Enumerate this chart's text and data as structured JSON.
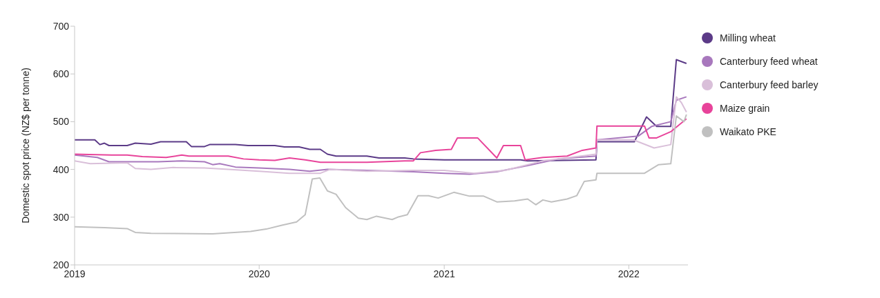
{
  "chart_data": {
    "type": "line",
    "ylabel": "Domestic spot price (NZ$ per tonne)",
    "xlim": [
      "2019-01-01",
      "2022-04-28"
    ],
    "xticks": [
      "2019",
      "2020",
      "2021",
      "2022"
    ],
    "ylim": [
      200,
      700
    ],
    "yticks": [
      200,
      300,
      400,
      500,
      600,
      700
    ],
    "grid": false,
    "legend": "right",
    "marker": "none",
    "line_style": "solid",
    "series": [
      {
        "name": "Milling wheat",
        "color": "#5b3a87",
        "x": [
          "2019-01-01",
          "2019-02-10",
          "2019-02-20",
          "2019-03-01",
          "2019-03-10",
          "2019-04-15",
          "2019-05-01",
          "2019-06-01",
          "2019-06-20",
          "2019-08-10",
          "2019-08-20",
          "2019-09-15",
          "2019-09-25",
          "2019-11-15",
          "2019-12-10",
          "2020-02-01",
          "2020-02-20",
          "2020-03-20",
          "2020-04-10",
          "2020-05-01",
          "2020-05-15",
          "2020-06-01",
          "2020-08-01",
          "2020-08-25",
          "2020-10-15",
          "2020-11-01",
          "2021-01-01",
          "2021-06-01",
          "2021-06-15",
          "2021-10-28",
          "2021-10-30",
          "2022-01-12",
          "2022-02-05",
          "2022-02-25",
          "2022-03-25",
          "2022-04-05",
          "2022-04-25"
        ],
        "values": [
          462,
          462,
          452,
          455,
          450,
          450,
          455,
          453,
          458,
          458,
          448,
          448,
          452,
          452,
          450,
          450,
          447,
          447,
          442,
          442,
          432,
          428,
          428,
          424,
          424,
          422,
          420,
          420,
          418,
          420,
          458,
          458,
          510,
          490,
          490,
          630,
          622
        ]
      },
      {
        "name": "Canterbury feed wheat",
        "color": "#a878bd",
        "x": [
          "2019-01-01",
          "2019-02-15",
          "2019-03-10",
          "2019-05-01",
          "2019-06-15",
          "2019-08-01",
          "2019-09-15",
          "2019-10-01",
          "2019-10-15",
          "2019-11-15",
          "2020-01-01",
          "2020-03-01",
          "2020-04-10",
          "2020-05-15",
          "2020-08-01",
          "2020-11-01",
          "2021-01-01",
          "2021-02-20",
          "2021-04-15",
          "2021-06-15",
          "2021-08-15",
          "2021-10-28",
          "2021-10-30",
          "2022-01-20",
          "2022-02-15",
          "2022-03-25",
          "2022-04-05",
          "2022-04-25"
        ],
        "values": [
          430,
          425,
          416,
          416,
          416,
          418,
          416,
          410,
          412,
          405,
          403,
          400,
          396,
          400,
          398,
          395,
          392,
          390,
          395,
          408,
          422,
          428,
          462,
          470,
          490,
          500,
          545,
          552
        ]
      },
      {
        "name": "Canterbury feed barley",
        "color": "#d9bfd9",
        "x": [
          "2019-01-01",
          "2019-02-01",
          "2019-04-15",
          "2019-05-01",
          "2019-06-01",
          "2019-07-15",
          "2019-09-15",
          "2019-11-01",
          "2020-01-01",
          "2020-03-01",
          "2020-05-01",
          "2020-05-20",
          "2020-08-01",
          "2020-11-01",
          "2021-01-01",
          "2021-03-01",
          "2021-05-01",
          "2021-07-15",
          "2021-10-28",
          "2021-10-30",
          "2022-01-10",
          "2022-02-20",
          "2022-03-25",
          "2022-04-05",
          "2022-04-15",
          "2022-04-25"
        ],
        "values": [
          418,
          412,
          414,
          402,
          400,
          404,
          403,
          400,
          396,
          392,
          392,
          400,
          396,
          398,
          398,
          392,
          398,
          418,
          432,
          462,
          462,
          445,
          452,
          552,
          540,
          520
        ]
      },
      {
        "name": "Maize grain",
        "color": "#e8439a",
        "x": [
          "2019-01-01",
          "2019-03-15",
          "2019-04-15",
          "2019-05-15",
          "2019-07-01",
          "2019-08-01",
          "2019-08-15",
          "2019-11-01",
          "2019-12-01",
          "2020-01-01",
          "2020-02-01",
          "2020-03-01",
          "2020-04-01",
          "2020-05-01",
          "2020-08-01",
          "2020-10-15",
          "2020-11-01",
          "2020-11-15",
          "2020-12-15",
          "2021-01-15",
          "2021-01-27",
          "2021-03-08",
          "2021-04-15",
          "2021-04-28",
          "2021-06-01",
          "2021-06-10",
          "2021-07-15",
          "2021-09-01",
          "2021-10-01",
          "2021-10-28",
          "2021-10-30",
          "2022-02-01",
          "2022-02-10",
          "2022-02-25",
          "2022-03-25",
          "2022-04-25"
        ],
        "values": [
          432,
          430,
          430,
          427,
          425,
          430,
          428,
          428,
          422,
          420,
          419,
          424,
          420,
          415,
          415,
          418,
          418,
          435,
          440,
          442,
          466,
          466,
          424,
          450,
          450,
          420,
          425,
          428,
          440,
          445,
          491,
          491,
          466,
          466,
          479,
          506
        ]
      },
      {
        "name": "Waikato PKE",
        "color": "#c0c0c0",
        "x": [
          "2019-01-01",
          "2019-03-01",
          "2019-04-15",
          "2019-05-01",
          "2019-06-01",
          "2019-10-01",
          "2019-12-15",
          "2020-01-15",
          "2020-02-15",
          "2020-03-15",
          "2020-04-01",
          "2020-04-15",
          "2020-04-30",
          "2020-05-15",
          "2020-06-01",
          "2020-06-20",
          "2020-07-15",
          "2020-08-01",
          "2020-08-20",
          "2020-09-20",
          "2020-10-01",
          "2020-10-20",
          "2020-11-10",
          "2020-12-01",
          "2020-12-20",
          "2021-01-20",
          "2021-02-20",
          "2021-03-20",
          "2021-04-15",
          "2021-05-20",
          "2021-06-15",
          "2021-07-01",
          "2021-07-15",
          "2021-08-01",
          "2021-09-01",
          "2021-09-20",
          "2021-10-05",
          "2021-10-28",
          "2021-10-30",
          "2022-02-01",
          "2022-03-01",
          "2022-03-25",
          "2022-04-05",
          "2022-04-20",
          "2022-04-25"
        ],
        "values": [
          280,
          278,
          276,
          268,
          266,
          265,
          270,
          275,
          283,
          290,
          305,
          380,
          382,
          355,
          348,
          320,
          298,
          295,
          302,
          295,
          300,
          305,
          345,
          345,
          340,
          352,
          344,
          344,
          332,
          334,
          338,
          326,
          336,
          332,
          338,
          345,
          375,
          378,
          392,
          392,
          410,
          412,
          512,
          500,
          515
        ]
      }
    ]
  }
}
